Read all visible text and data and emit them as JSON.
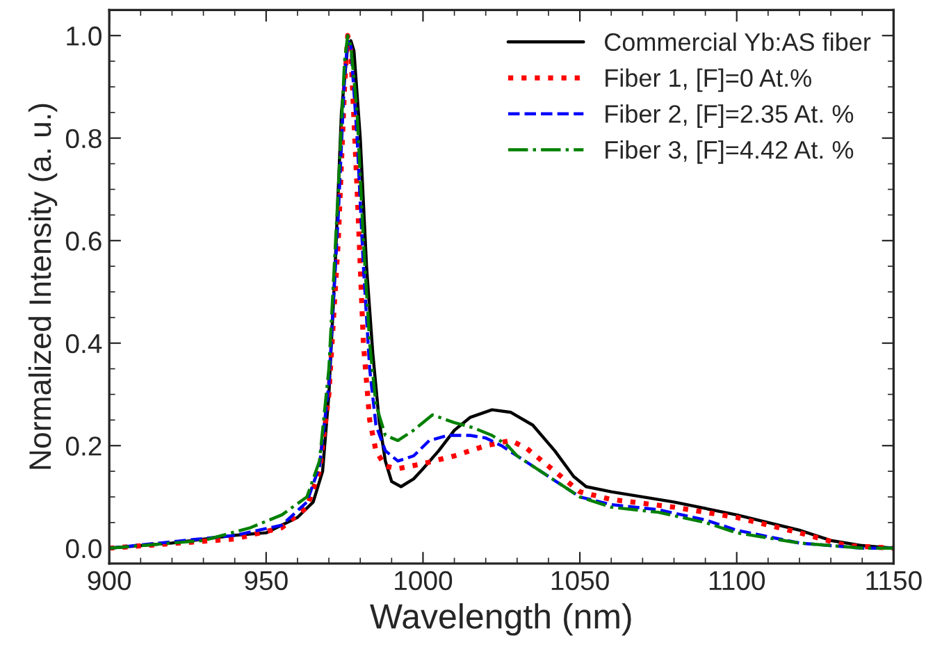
{
  "chart_data": {
    "type": "line",
    "xlabel": "Wavelength (nm)",
    "ylabel": "Normalized Intensity (a. u.)",
    "xlim": [
      900,
      1150
    ],
    "xticks": [
      900,
      950,
      1000,
      1050,
      1100,
      1150
    ],
    "ylim": [
      -0.03,
      1.05
    ],
    "yticks": [
      {
        "value": 0,
        "label": "0.0"
      },
      0.2,
      0.4,
      0.6,
      0.8,
      {
        "value": 1,
        "label": "1.0"
      }
    ],
    "grid": false,
    "legend": "top right",
    "marker": "none",
    "series": [
      {
        "name": "Commercial Yb:AS fiber",
        "color": "#000000",
        "line_style": "solid",
        "x": [
          900,
          920,
          940,
          950,
          960,
          965,
          968,
          970,
          972,
          974,
          976,
          977,
          978,
          980,
          982,
          984,
          986,
          988,
          990,
          993,
          997,
          1000,
          1005,
          1010,
          1015,
          1022,
          1028,
          1035,
          1042,
          1048,
          1052,
          1060,
          1080,
          1100,
          1120,
          1130,
          1140,
          1150
        ],
        "values": [
          0.0,
          0.01,
          0.025,
          0.03,
          0.06,
          0.09,
          0.15,
          0.3,
          0.55,
          0.85,
          0.98,
          0.99,
          0.97,
          0.8,
          0.55,
          0.38,
          0.25,
          0.17,
          0.13,
          0.12,
          0.135,
          0.155,
          0.19,
          0.23,
          0.255,
          0.27,
          0.265,
          0.24,
          0.19,
          0.14,
          0.12,
          0.11,
          0.09,
          0.065,
          0.035,
          0.015,
          0.005,
          0.0
        ]
      },
      {
        "name": "Fiber 1, [F]=0 At.%",
        "color": "#ff0000",
        "line_style": "dotted",
        "x": [
          900,
          940,
          955,
          963,
          967,
          970,
          973,
          975,
          976,
          977,
          979,
          981,
          983,
          985,
          988,
          992,
          1000,
          1010,
          1020,
          1028,
          1033,
          1040,
          1050,
          1060,
          1080,
          1100,
          1120,
          1135,
          1150
        ],
        "values": [
          0.0,
          0.018,
          0.04,
          0.08,
          0.15,
          0.3,
          0.6,
          0.9,
          1.0,
          0.97,
          0.7,
          0.4,
          0.25,
          0.19,
          0.16,
          0.155,
          0.165,
          0.18,
          0.2,
          0.21,
          0.195,
          0.16,
          0.11,
          0.095,
          0.08,
          0.06,
          0.03,
          0.005,
          0.0
        ]
      },
      {
        "name": "Fiber 2, [F]=2.35 At. %",
        "color": "#0000ff",
        "line_style": "dashed",
        "x": [
          900,
          940,
          955,
          963,
          967,
          970,
          973,
          975,
          976,
          977,
          979,
          981,
          983,
          985,
          988,
          992,
          997,
          1002,
          1008,
          1015,
          1020,
          1025,
          1030,
          1040,
          1050,
          1060,
          1075,
          1090,
          1100,
          1120,
          1140,
          1150
        ],
        "values": [
          0.0,
          0.025,
          0.045,
          0.09,
          0.16,
          0.32,
          0.65,
          0.92,
          0.99,
          0.98,
          0.8,
          0.55,
          0.35,
          0.24,
          0.19,
          0.17,
          0.18,
          0.21,
          0.22,
          0.22,
          0.215,
          0.2,
          0.18,
          0.14,
          0.1,
          0.085,
          0.075,
          0.055,
          0.035,
          0.01,
          0.0,
          0.0
        ]
      },
      {
        "name": "Fiber 3, [F]=4.42 At. %",
        "color": "#008000",
        "line_style": "dashdot",
        "x": [
          900,
          930,
          945,
          955,
          963,
          967,
          970,
          973,
          975,
          976,
          977,
          979,
          981,
          983,
          985,
          988,
          992,
          997,
          1003,
          1010,
          1016,
          1022,
          1027,
          1030,
          1040,
          1050,
          1060,
          1075,
          1090,
          1100,
          1120,
          1140,
          1150
        ],
        "values": [
          0.0,
          0.015,
          0.04,
          0.065,
          0.1,
          0.17,
          0.35,
          0.7,
          0.95,
          1.0,
          0.98,
          0.85,
          0.6,
          0.4,
          0.28,
          0.22,
          0.21,
          0.23,
          0.26,
          0.245,
          0.235,
          0.22,
          0.2,
          0.18,
          0.14,
          0.1,
          0.08,
          0.07,
          0.05,
          0.03,
          0.01,
          0.0,
          0.0
        ]
      }
    ]
  }
}
